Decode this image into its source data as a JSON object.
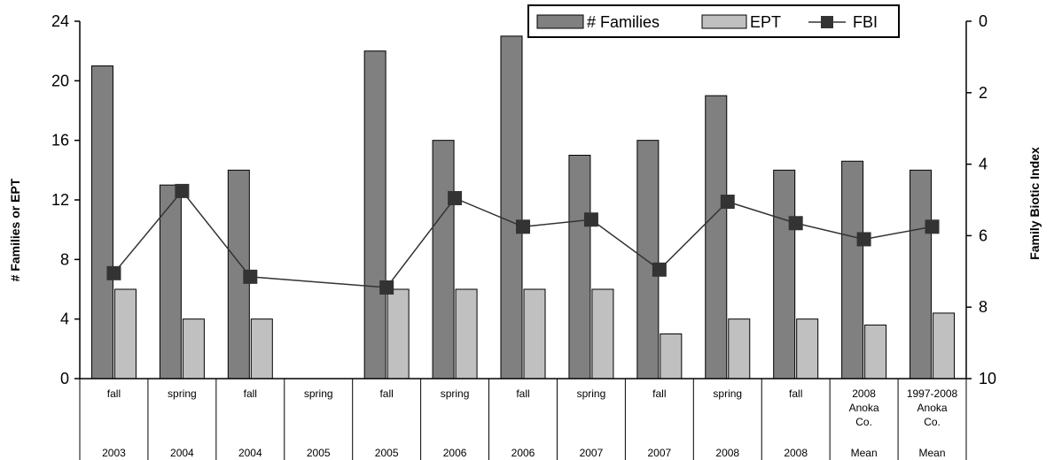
{
  "chart_data": {
    "type": "bar",
    "categories": [
      {
        "lines": [
          "fall"
        ],
        "year": "2003"
      },
      {
        "lines": [
          "spring"
        ],
        "year": "2004"
      },
      {
        "lines": [
          "fall"
        ],
        "year": "2004"
      },
      {
        "lines": [
          "spring"
        ],
        "year": "2005"
      },
      {
        "lines": [
          "fall"
        ],
        "year": "2005"
      },
      {
        "lines": [
          "spring"
        ],
        "year": "2006"
      },
      {
        "lines": [
          "fall"
        ],
        "year": "2006"
      },
      {
        "lines": [
          "spring"
        ],
        "year": "2007"
      },
      {
        "lines": [
          "fall"
        ],
        "year": "2007"
      },
      {
        "lines": [
          "spring"
        ],
        "year": "2008"
      },
      {
        "lines": [
          "fall"
        ],
        "year": "2008"
      },
      {
        "lines": [
          "2008",
          "Anoka",
          "Co."
        ],
        "year": "Mean"
      },
      {
        "lines": [
          "1997-2008",
          "Anoka",
          "Co."
        ],
        "year": "Mean"
      }
    ],
    "series": [
      {
        "name": "# Families",
        "type": "bar",
        "axis": "left",
        "color": "#808080",
        "values": [
          21,
          13,
          14,
          null,
          22,
          16,
          23,
          15,
          16,
          19,
          14,
          14.6,
          14
        ]
      },
      {
        "name": "EPT",
        "type": "bar",
        "axis": "left",
        "color": "#c0c0c0",
        "values": [
          6,
          4,
          4,
          null,
          6,
          6,
          6,
          6,
          3,
          4,
          4,
          3.6,
          4.4
        ]
      },
      {
        "name": "FBI",
        "type": "line",
        "axis": "right",
        "color": "#333333",
        "values": [
          7.05,
          4.75,
          7.15,
          null,
          7.45,
          4.95,
          5.75,
          5.55,
          6.95,
          5.05,
          5.65,
          6.1,
          5.75
        ]
      }
    ],
    "ylabel": "# Families or EPT",
    "ylabel_right": "Family Biotic Index",
    "ylim": [
      0,
      24
    ],
    "yticks": [
      0,
      4,
      8,
      12,
      16,
      20,
      24
    ],
    "ylim_right": [
      0,
      10
    ],
    "yticks_right": [
      0,
      2,
      4,
      6,
      8,
      10
    ],
    "right_axis_inverted": true,
    "legend_position": "top-right",
    "grid": false
  }
}
